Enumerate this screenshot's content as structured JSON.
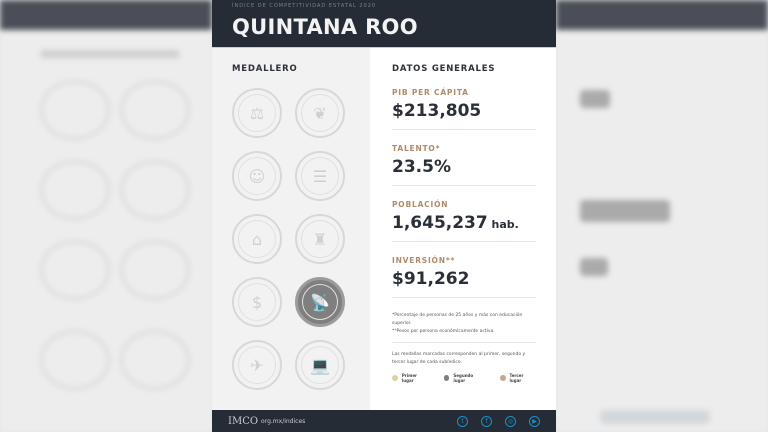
{
  "header": {
    "supertitle": "ÍNDICE DE COMPETITIVIDAD ESTATAL 2020",
    "title": "QUINTANA ROO"
  },
  "medallero": {
    "title": "MEDALLERO",
    "medals": [
      {
        "icon": "scales-icon",
        "glyph": "⚖",
        "awarded": false
      },
      {
        "icon": "leaf-icon",
        "glyph": "❦",
        "awarded": false
      },
      {
        "icon": "people-icon",
        "glyph": "☺",
        "awarded": false
      },
      {
        "icon": "document-icon",
        "glyph": "☰",
        "awarded": false
      },
      {
        "icon": "bank-icon",
        "glyph": "⌂",
        "awarded": false
      },
      {
        "icon": "factory-icon",
        "glyph": "♜",
        "awarded": false
      },
      {
        "icon": "coins-icon",
        "glyph": "$",
        "awarded": false
      },
      {
        "icon": "antenna-icon",
        "glyph": "📡",
        "awarded": true,
        "place": "Segundo lugar"
      },
      {
        "icon": "airplane-icon",
        "glyph": "✈",
        "awarded": false
      },
      {
        "icon": "laptop-icon",
        "glyph": "💻",
        "awarded": false
      }
    ]
  },
  "datos": {
    "title": "DATOS GENERALES",
    "indicators": [
      {
        "label": "PIB PER CÁPITA",
        "value": "$213,805",
        "unit": ""
      },
      {
        "label": "TALENTO*",
        "value": "23.5%",
        "unit": ""
      },
      {
        "label": "POBLACIÓN",
        "value": "1,645,237",
        "unit": " hab."
      },
      {
        "label": "INVERSIÓN**",
        "value": "$91,262",
        "unit": ""
      }
    ],
    "notes": [
      "*Porcentaje de personas de 25 años y más con educación superior.",
      "**Pesos por persona económicamente activa."
    ],
    "legend_text": "Las medallas marcadas corresponden al primer, segundo y tercer lugar de cada subíndice.",
    "legend": [
      {
        "label": "Primer lugar",
        "color": "#e2cf9e"
      },
      {
        "label": "Segundo lugar",
        "color": "#7f7f7f"
      },
      {
        "label": "Tercer lugar",
        "color": "#c4a68c"
      }
    ]
  },
  "footer": {
    "logo": "IMCO",
    "url": "org.mx/indices",
    "social": [
      {
        "icon": "twitter-icon",
        "glyph": "t"
      },
      {
        "icon": "facebook-icon",
        "glyph": "f"
      },
      {
        "icon": "instagram-icon",
        "glyph": "◎"
      },
      {
        "icon": "youtube-icon",
        "glyph": "▶"
      }
    ]
  }
}
